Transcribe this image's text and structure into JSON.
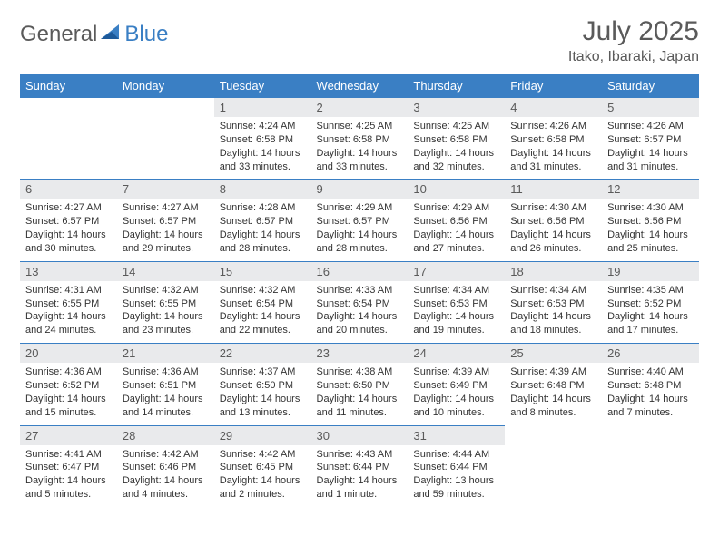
{
  "logo": {
    "general": "General",
    "blue": "Blue"
  },
  "title": "July 2025",
  "location": "Itako, Ibaraki, Japan",
  "colors": {
    "header_bg": "#3a7fc4",
    "header_fg": "#ffffff",
    "daynum_bg": "#e9eaec",
    "text": "#5a5a5a",
    "body_text": "#333333",
    "border": "#3a7fc4",
    "page_bg": "#ffffff"
  },
  "weekdays": [
    "Sunday",
    "Monday",
    "Tuesday",
    "Wednesday",
    "Thursday",
    "Friday",
    "Saturday"
  ],
  "layout": {
    "first_weekday_index": 2,
    "days_in_month": 31,
    "cell_fontsize_pt": 8,
    "header_fontsize_pt": 10,
    "title_fontsize_pt": 22
  },
  "days": {
    "1": {
      "sunrise": "4:24 AM",
      "sunset": "6:58 PM",
      "daylight": "14 hours and 33 minutes."
    },
    "2": {
      "sunrise": "4:25 AM",
      "sunset": "6:58 PM",
      "daylight": "14 hours and 33 minutes."
    },
    "3": {
      "sunrise": "4:25 AM",
      "sunset": "6:58 PM",
      "daylight": "14 hours and 32 minutes."
    },
    "4": {
      "sunrise": "4:26 AM",
      "sunset": "6:58 PM",
      "daylight": "14 hours and 31 minutes."
    },
    "5": {
      "sunrise": "4:26 AM",
      "sunset": "6:57 PM",
      "daylight": "14 hours and 31 minutes."
    },
    "6": {
      "sunrise": "4:27 AM",
      "sunset": "6:57 PM",
      "daylight": "14 hours and 30 minutes."
    },
    "7": {
      "sunrise": "4:27 AM",
      "sunset": "6:57 PM",
      "daylight": "14 hours and 29 minutes."
    },
    "8": {
      "sunrise": "4:28 AM",
      "sunset": "6:57 PM",
      "daylight": "14 hours and 28 minutes."
    },
    "9": {
      "sunrise": "4:29 AM",
      "sunset": "6:57 PM",
      "daylight": "14 hours and 28 minutes."
    },
    "10": {
      "sunrise": "4:29 AM",
      "sunset": "6:56 PM",
      "daylight": "14 hours and 27 minutes."
    },
    "11": {
      "sunrise": "4:30 AM",
      "sunset": "6:56 PM",
      "daylight": "14 hours and 26 minutes."
    },
    "12": {
      "sunrise": "4:30 AM",
      "sunset": "6:56 PM",
      "daylight": "14 hours and 25 minutes."
    },
    "13": {
      "sunrise": "4:31 AM",
      "sunset": "6:55 PM",
      "daylight": "14 hours and 24 minutes."
    },
    "14": {
      "sunrise": "4:32 AM",
      "sunset": "6:55 PM",
      "daylight": "14 hours and 23 minutes."
    },
    "15": {
      "sunrise": "4:32 AM",
      "sunset": "6:54 PM",
      "daylight": "14 hours and 22 minutes."
    },
    "16": {
      "sunrise": "4:33 AM",
      "sunset": "6:54 PM",
      "daylight": "14 hours and 20 minutes."
    },
    "17": {
      "sunrise": "4:34 AM",
      "sunset": "6:53 PM",
      "daylight": "14 hours and 19 minutes."
    },
    "18": {
      "sunrise": "4:34 AM",
      "sunset": "6:53 PM",
      "daylight": "14 hours and 18 minutes."
    },
    "19": {
      "sunrise": "4:35 AM",
      "sunset": "6:52 PM",
      "daylight": "14 hours and 17 minutes."
    },
    "20": {
      "sunrise": "4:36 AM",
      "sunset": "6:52 PM",
      "daylight": "14 hours and 15 minutes."
    },
    "21": {
      "sunrise": "4:36 AM",
      "sunset": "6:51 PM",
      "daylight": "14 hours and 14 minutes."
    },
    "22": {
      "sunrise": "4:37 AM",
      "sunset": "6:50 PM",
      "daylight": "14 hours and 13 minutes."
    },
    "23": {
      "sunrise": "4:38 AM",
      "sunset": "6:50 PM",
      "daylight": "14 hours and 11 minutes."
    },
    "24": {
      "sunrise": "4:39 AM",
      "sunset": "6:49 PM",
      "daylight": "14 hours and 10 minutes."
    },
    "25": {
      "sunrise": "4:39 AM",
      "sunset": "6:48 PM",
      "daylight": "14 hours and 8 minutes."
    },
    "26": {
      "sunrise": "4:40 AM",
      "sunset": "6:48 PM",
      "daylight": "14 hours and 7 minutes."
    },
    "27": {
      "sunrise": "4:41 AM",
      "sunset": "6:47 PM",
      "daylight": "14 hours and 5 minutes."
    },
    "28": {
      "sunrise": "4:42 AM",
      "sunset": "6:46 PM",
      "daylight": "14 hours and 4 minutes."
    },
    "29": {
      "sunrise": "4:42 AM",
      "sunset": "6:45 PM",
      "daylight": "14 hours and 2 minutes."
    },
    "30": {
      "sunrise": "4:43 AM",
      "sunset": "6:44 PM",
      "daylight": "14 hours and 1 minute."
    },
    "31": {
      "sunrise": "4:44 AM",
      "sunset": "6:44 PM",
      "daylight": "13 hours and 59 minutes."
    }
  },
  "labels": {
    "sunrise_prefix": "Sunrise: ",
    "sunset_prefix": "Sunset: ",
    "daylight_prefix": "Daylight: "
  }
}
